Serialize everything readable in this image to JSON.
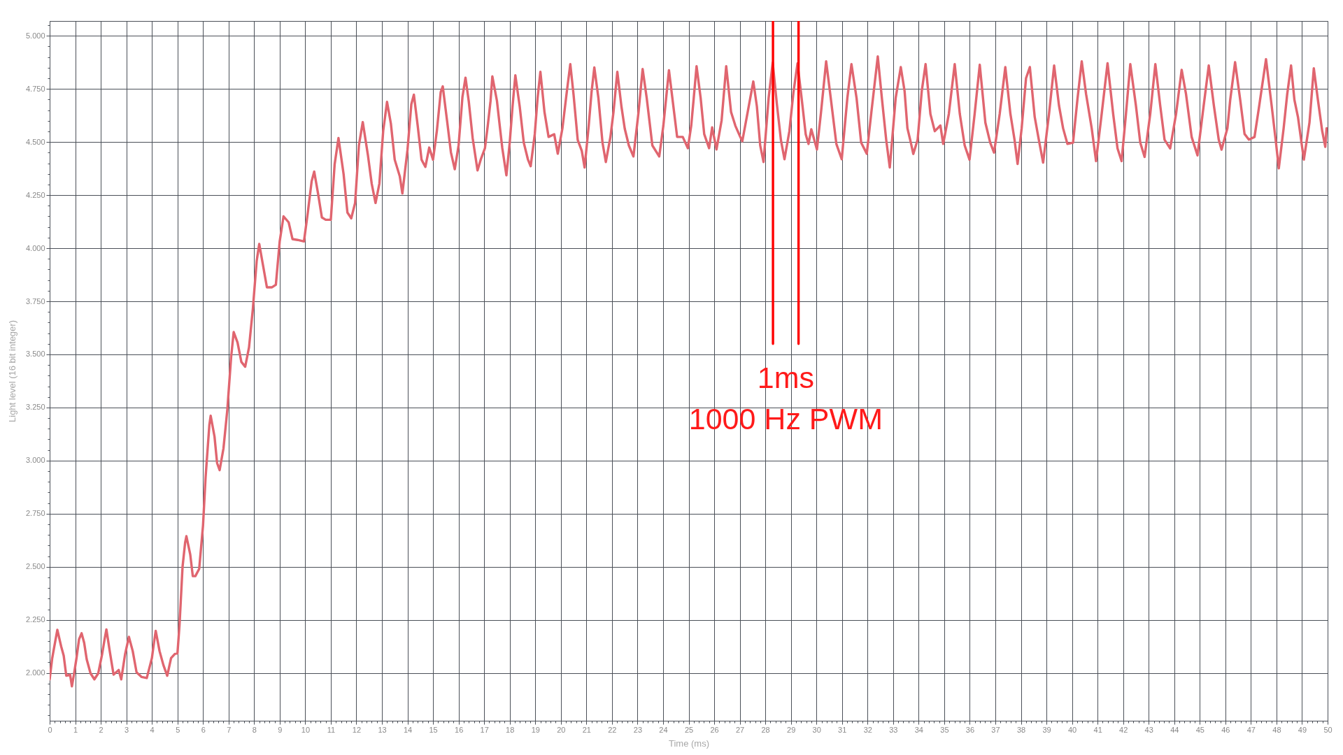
{
  "chart_data": {
    "type": "line",
    "xlabel": "Time (ms)",
    "ylabel": "Light level (16 bit integer)",
    "xlim": [
      0,
      50
    ],
    "ylim": [
      1775,
      5070
    ],
    "xticks": [
      0,
      {
        "value": 0.2,
        "label": null
      },
      {
        "value": 0.4,
        "label": null
      },
      {
        "value": 0.6,
        "label": null
      },
      {
        "value": 0.8,
        "label": null
      },
      1,
      {
        "value": 1.2,
        "label": null
      },
      {
        "value": 1.4,
        "label": null
      },
      {
        "value": 1.6,
        "label": null
      },
      {
        "value": 1.8,
        "label": null
      },
      2,
      {
        "value": 2.2,
        "label": null
      },
      {
        "value": 2.4,
        "label": null
      },
      {
        "value": 2.6,
        "label": null
      },
      {
        "value": 2.8,
        "label": null
      },
      3,
      {
        "value": 3.2,
        "label": null
      },
      {
        "value": 3.4,
        "label": null
      },
      {
        "value": 3.6,
        "label": null
      },
      {
        "value": 3.8,
        "label": null
      },
      4,
      {
        "value": 4.2,
        "label": null
      },
      {
        "value": 4.4,
        "label": null
      },
      {
        "value": 4.6,
        "label": null
      },
      {
        "value": 4.8,
        "label": null
      },
      5,
      {
        "value": 5.2,
        "label": null
      },
      {
        "value": 5.4,
        "label": null
      },
      {
        "value": 5.6,
        "label": null
      },
      {
        "value": 5.8,
        "label": null
      },
      6,
      {
        "value": 6.2,
        "label": null
      },
      {
        "value": 6.4,
        "label": null
      },
      {
        "value": 6.6,
        "label": null
      },
      {
        "value": 6.8,
        "label": null
      },
      7,
      {
        "value": 7.2,
        "label": null
      },
      {
        "value": 7.4,
        "label": null
      },
      {
        "value": 7.6,
        "label": null
      },
      {
        "value": 7.8,
        "label": null
      },
      8,
      {
        "value": 8.2,
        "label": null
      },
      {
        "value": 8.4,
        "label": null
      },
      {
        "value": 8.6,
        "label": null
      },
      {
        "value": 8.8,
        "label": null
      },
      9,
      {
        "value": 9.2,
        "label": null
      },
      {
        "value": 9.4,
        "label": null
      },
      {
        "value": 9.6,
        "label": null
      },
      {
        "value": 9.8,
        "label": null
      },
      10,
      {
        "value": 10.2,
        "label": null
      },
      {
        "value": 10.4,
        "label": null
      },
      {
        "value": 10.6,
        "label": null
      },
      {
        "value": 10.8,
        "label": null
      },
      11,
      {
        "value": 11.2,
        "label": null
      },
      {
        "value": 11.4,
        "label": null
      },
      {
        "value": 11.6,
        "label": null
      },
      {
        "value": 11.8,
        "label": null
      },
      12,
      {
        "value": 12.2,
        "label": null
      },
      {
        "value": 12.4,
        "label": null
      },
      {
        "value": 12.6,
        "label": null
      },
      {
        "value": 12.8,
        "label": null
      },
      13,
      {
        "value": 13.2,
        "label": null
      },
      {
        "value": 13.4,
        "label": null
      },
      {
        "value": 13.6,
        "label": null
      },
      {
        "value": 13.8,
        "label": null
      },
      14,
      {
        "value": 14.2,
        "label": null
      },
      {
        "value": 14.4,
        "label": null
      },
      {
        "value": 14.6,
        "label": null
      },
      {
        "value": 14.8,
        "label": null
      },
      15,
      {
        "value": 15.2,
        "label": null
      },
      {
        "value": 15.4,
        "label": null
      },
      {
        "value": 15.6,
        "label": null
      },
      {
        "value": 15.8,
        "label": null
      },
      16,
      {
        "value": 16.2,
        "label": null
      },
      {
        "value": 16.4,
        "label": null
      },
      {
        "value": 16.6,
        "label": null
      },
      {
        "value": 16.8,
        "label": null
      },
      17,
      {
        "value": 17.2,
        "label": null
      },
      {
        "value": 17.4,
        "label": null
      },
      {
        "value": 17.6,
        "label": null
      },
      {
        "value": 17.8,
        "label": null
      },
      18,
      {
        "value": 18.2,
        "label": null
      },
      {
        "value": 18.4,
        "label": null
      },
      {
        "value": 18.6,
        "label": null
      },
      {
        "value": 18.8,
        "label": null
      },
      19,
      {
        "value": 19.2,
        "label": null
      },
      {
        "value": 19.4,
        "label": null
      },
      {
        "value": 19.6,
        "label": null
      },
      {
        "value": 19.8,
        "label": null
      },
      20,
      {
        "value": 20.2,
        "label": null
      },
      {
        "value": 20.4,
        "label": null
      },
      {
        "value": 20.6,
        "label": null
      },
      {
        "value": 20.8,
        "label": null
      },
      21,
      {
        "value": 21.2,
        "label": null
      },
      {
        "value": 21.4,
        "label": null
      },
      {
        "value": 21.6,
        "label": null
      },
      {
        "value": 21.8,
        "label": null
      },
      22,
      {
        "value": 22.2,
        "label": null
      },
      {
        "value": 22.4,
        "label": null
      },
      {
        "value": 22.6,
        "label": null
      },
      {
        "value": 22.8,
        "label": null
      },
      23,
      {
        "value": 23.2,
        "label": null
      },
      {
        "value": 23.4,
        "label": null
      },
      {
        "value": 23.6,
        "label": null
      },
      {
        "value": 23.8,
        "label": null
      },
      24,
      {
        "value": 24.2,
        "label": null
      },
      {
        "value": 24.4,
        "label": null
      },
      {
        "value": 24.6,
        "label": null
      },
      {
        "value": 24.8,
        "label": null
      },
      25,
      {
        "value": 25.2,
        "label": null
      },
      {
        "value": 25.4,
        "label": null
      },
      {
        "value": 25.6,
        "label": null
      },
      {
        "value": 25.8,
        "label": null
      },
      26,
      {
        "value": 26.2,
        "label": null
      },
      {
        "value": 26.4,
        "label": null
      },
      {
        "value": 26.6,
        "label": null
      },
      {
        "value": 26.8,
        "label": null
      },
      27,
      {
        "value": 27.2,
        "label": null
      },
      {
        "value": 27.4,
        "label": null
      },
      {
        "value": 27.6,
        "label": null
      },
      {
        "value": 27.8,
        "label": null
      },
      28,
      {
        "value": 28.2,
        "label": null
      },
      {
        "value": 28.4,
        "label": null
      },
      {
        "value": 28.6,
        "label": null
      },
      {
        "value": 28.8,
        "label": null
      },
      29,
      {
        "value": 29.2,
        "label": null
      },
      {
        "value": 29.4,
        "label": null
      },
      {
        "value": 29.6,
        "label": null
      },
      {
        "value": 29.8,
        "label": null
      },
      30,
      {
        "value": 30.2,
        "label": null
      },
      {
        "value": 30.4,
        "label": null
      },
      {
        "value": 30.6,
        "label": null
      },
      {
        "value": 30.8,
        "label": null
      },
      31,
      {
        "value": 31.2,
        "label": null
      },
      {
        "value": 31.4,
        "label": null
      },
      {
        "value": 31.6,
        "label": null
      },
      {
        "value": 31.8,
        "label": null
      },
      32,
      {
        "value": 32.2,
        "label": null
      },
      {
        "value": 32.4,
        "label": null
      },
      {
        "value": 32.6,
        "label": null
      },
      {
        "value": 32.8,
        "label": null
      },
      33,
      {
        "value": 33.2,
        "label": null
      },
      {
        "value": 33.4,
        "label": null
      },
      {
        "value": 33.6,
        "label": null
      },
      {
        "value": 33.8,
        "label": null
      },
      34,
      {
        "value": 34.2,
        "label": null
      },
      {
        "value": 34.4,
        "label": null
      },
      {
        "value": 34.6,
        "label": null
      },
      {
        "value": 34.8,
        "label": null
      },
      35,
      {
        "value": 35.2,
        "label": null
      },
      {
        "value": 35.4,
        "label": null
      },
      {
        "value": 35.6,
        "label": null
      },
      {
        "value": 35.8,
        "label": null
      },
      36,
      {
        "value": 36.2,
        "label": null
      },
      {
        "value": 36.4,
        "label": null
      },
      {
        "value": 36.6,
        "label": null
      },
      {
        "value": 36.8,
        "label": null
      },
      37,
      {
        "value": 37.2,
        "label": null
      },
      {
        "value": 37.4,
        "label": null
      },
      {
        "value": 37.6,
        "label": null
      },
      {
        "value": 37.8,
        "label": null
      },
      38,
      {
        "value": 38.2,
        "label": null
      },
      {
        "value": 38.4,
        "label": null
      },
      {
        "value": 38.6,
        "label": null
      },
      {
        "value": 38.8,
        "label": null
      },
      39,
      {
        "value": 39.2,
        "label": null
      },
      {
        "value": 39.4,
        "label": null
      },
      {
        "value": 39.6,
        "label": null
      },
      {
        "value": 39.8,
        "label": null
      },
      40,
      {
        "value": 40.2,
        "label": null
      },
      {
        "value": 40.4,
        "label": null
      },
      {
        "value": 40.6,
        "label": null
      },
      {
        "value": 40.8,
        "label": null
      },
      41,
      {
        "value": 41.2,
        "label": null
      },
      {
        "value": 41.4,
        "label": null
      },
      {
        "value": 41.6,
        "label": null
      },
      {
        "value": 41.8,
        "label": null
      },
      42,
      {
        "value": 42.2,
        "label": null
      },
      {
        "value": 42.4,
        "label": null
      },
      {
        "value": 42.6,
        "label": null
      },
      {
        "value": 42.8,
        "label": null
      },
      43,
      {
        "value": 43.2,
        "label": null
      },
      {
        "value": 43.4,
        "label": null
      },
      {
        "value": 43.6,
        "label": null
      },
      {
        "value": 43.8,
        "label": null
      },
      44,
      {
        "value": 44.2,
        "label": null
      },
      {
        "value": 44.4,
        "label": null
      },
      {
        "value": 44.6,
        "label": null
      },
      {
        "value": 44.8,
        "label": null
      },
      45,
      {
        "value": 45.2,
        "label": null
      },
      {
        "value": 45.4,
        "label": null
      },
      {
        "value": 45.6,
        "label": null
      },
      {
        "value": 45.8,
        "label": null
      },
      46,
      {
        "value": 46.2,
        "label": null
      },
      {
        "value": 46.4,
        "label": null
      },
      {
        "value": 46.6,
        "label": null
      },
      {
        "value": 46.8,
        "label": null
      },
      47,
      {
        "value": 47.2,
        "label": null
      },
      {
        "value": 47.4,
        "label": null
      },
      {
        "value": 47.6,
        "label": null
      },
      {
        "value": 47.8,
        "label": null
      },
      48,
      {
        "value": 48.2,
        "label": null
      },
      {
        "value": 48.4,
        "label": null
      },
      {
        "value": 48.6,
        "label": null
      },
      {
        "value": 48.8,
        "label": null
      },
      49,
      {
        "value": 49.2,
        "label": null
      },
      {
        "value": 49.4,
        "label": null
      },
      {
        "value": 49.6,
        "label": null
      },
      {
        "value": 49.8,
        "label": null
      },
      50
    ],
    "yticks": [
      {
        "value": 1800,
        "label": null
      },
      {
        "value": 1850,
        "label": null
      },
      {
        "value": 1900,
        "label": null
      },
      {
        "value": 1950,
        "label": null
      },
      {
        "value": 2000,
        "label": "2.000"
      },
      {
        "value": 2050,
        "label": null
      },
      {
        "value": 2100,
        "label": null
      },
      {
        "value": 2150,
        "label": null
      },
      {
        "value": 2200,
        "label": null
      },
      {
        "value": 2250,
        "label": "2.250"
      },
      {
        "value": 2300,
        "label": null
      },
      {
        "value": 2350,
        "label": null
      },
      {
        "value": 2400,
        "label": null
      },
      {
        "value": 2450,
        "label": null
      },
      {
        "value": 2500,
        "label": "2.500"
      },
      {
        "value": 2550,
        "label": null
      },
      {
        "value": 2600,
        "label": null
      },
      {
        "value": 2650,
        "label": null
      },
      {
        "value": 2700,
        "label": null
      },
      {
        "value": 2750,
        "label": "2.750"
      },
      {
        "value": 2800,
        "label": null
      },
      {
        "value": 2850,
        "label": null
      },
      {
        "value": 2900,
        "label": null
      },
      {
        "value": 2950,
        "label": null
      },
      {
        "value": 3000,
        "label": "3.000"
      },
      {
        "value": 3050,
        "label": null
      },
      {
        "value": 3100,
        "label": null
      },
      {
        "value": 3150,
        "label": null
      },
      {
        "value": 3200,
        "label": null
      },
      {
        "value": 3250,
        "label": "3.250"
      },
      {
        "value": 3300,
        "label": null
      },
      {
        "value": 3350,
        "label": null
      },
      {
        "value": 3400,
        "label": null
      },
      {
        "value": 3450,
        "label": null
      },
      {
        "value": 3500,
        "label": "3.500"
      },
      {
        "value": 3550,
        "label": null
      },
      {
        "value": 3600,
        "label": null
      },
      {
        "value": 3650,
        "label": null
      },
      {
        "value": 3700,
        "label": null
      },
      {
        "value": 3750,
        "label": "3.750"
      },
      {
        "value": 3800,
        "label": null
      },
      {
        "value": 3850,
        "label": null
      },
      {
        "value": 3900,
        "label": null
      },
      {
        "value": 3950,
        "label": null
      },
      {
        "value": 4000,
        "label": "4.000"
      },
      {
        "value": 4050,
        "label": null
      },
      {
        "value": 4100,
        "label": null
      },
      {
        "value": 4150,
        "label": null
      },
      {
        "value": 4200,
        "label": null
      },
      {
        "value": 4250,
        "label": "4.250"
      },
      {
        "value": 4300,
        "label": null
      },
      {
        "value": 4350,
        "label": null
      },
      {
        "value": 4400,
        "label": null
      },
      {
        "value": 4450,
        "label": null
      },
      {
        "value": 4500,
        "label": "4.500"
      },
      {
        "value": 4550,
        "label": null
      },
      {
        "value": 4600,
        "label": null
      },
      {
        "value": 4650,
        "label": null
      },
      {
        "value": 4700,
        "label": null
      },
      {
        "value": 4750,
        "label": "4.750"
      },
      {
        "value": 4800,
        "label": null
      },
      {
        "value": 4850,
        "label": null
      },
      {
        "value": 4900,
        "label": null
      },
      {
        "value": 4950,
        "label": null
      },
      {
        "value": 5000,
        "label": "5.000"
      },
      {
        "value": 5050,
        "label": null
      }
    ],
    "grid": true,
    "series": [
      {
        "color": "#e0656f",
        "x": [
          0,
          0.1,
          0.3,
          0.45,
          0.55,
          0.65,
          0.8,
          0.87,
          0.95,
          1.05,
          1.15,
          1.25,
          1.35,
          1.45,
          1.6,
          1.75,
          1.9,
          2.05,
          2.15,
          2.22,
          2.35,
          2.5,
          2.7,
          2.8,
          2.95,
          3.1,
          3.25,
          3.4,
          3.6,
          3.8,
          4.0,
          4.1,
          4.15,
          4.3,
          4.45,
          4.6,
          4.75,
          4.9,
          5.0,
          5.08,
          5.2,
          5.3,
          5.35,
          5.5,
          5.6,
          5.7,
          5.85,
          6.0,
          6.1,
          6.25,
          6.3,
          6.45,
          6.55,
          6.65,
          6.8,
          6.95,
          7.1,
          7.2,
          7.35,
          7.5,
          7.65,
          7.8,
          7.95,
          8.1,
          8.2,
          8.35,
          8.5,
          8.7,
          8.85,
          9.0,
          9.15,
          9.35,
          9.5,
          9.7,
          9.95,
          10.1,
          10.25,
          10.35,
          10.5,
          10.65,
          10.8,
          11.0,
          11.15,
          11.3,
          11.5,
          11.65,
          11.8,
          11.95,
          12.1,
          12.25,
          12.45,
          12.6,
          12.75,
          12.9,
          13.05,
          13.2,
          13.35,
          13.5,
          13.7,
          13.8,
          14.0,
          14.15,
          14.25,
          14.4,
          14.55,
          14.7,
          14.85,
          15.0,
          15.15,
          15.3,
          15.38,
          15.55,
          15.7,
          15.85,
          16.0,
          16.15,
          16.27,
          16.4,
          16.55,
          16.74,
          16.87,
          17.03,
          17.14,
          17.25,
          17.32,
          17.5,
          17.61,
          17.71,
          17.87,
          18.0,
          18.11,
          18.22,
          18.39,
          18.55,
          18.71,
          18.82,
          18.98,
          19.09,
          19.2,
          19.36,
          19.52,
          19.74,
          19.88,
          20.06,
          20.23,
          20.37,
          20.5,
          20.66,
          20.82,
          20.93,
          21.09,
          21.2,
          21.31,
          21.47,
          21.63,
          21.76,
          21.94,
          22.06,
          22.21,
          22.37,
          22.5,
          22.66,
          22.84,
          23.04,
          23.2,
          23.36,
          23.58,
          23.85,
          24.01,
          24.23,
          24.39,
          24.55,
          24.77,
          24.97,
          25.1,
          25.2,
          25.31,
          25.47,
          25.61,
          25.8,
          25.92,
          26.09,
          26.29,
          26.47,
          26.66,
          26.83,
          27.02,
          27.1,
          27.31,
          27.53,
          27.67,
          27.8,
          27.93,
          28.13,
          28.29,
          28.45,
          28.61,
          28.75,
          28.94,
          29.1,
          29.26,
          29.42,
          29.58,
          29.69,
          29.8,
          30.02,
          30.18,
          30.38,
          30.56,
          30.78,
          30.99,
          31.21,
          31.37,
          31.57,
          31.75,
          31.97,
          32.15,
          32.4,
          32.56,
          32.73,
          32.87,
          33.1,
          33.3,
          33.45,
          33.56,
          33.68,
          33.79,
          33.96,
          34.12,
          34.27,
          34.46,
          34.63,
          34.85,
          34.96,
          35.18,
          35.41,
          35.61,
          35.8,
          35.99,
          36.19,
          36.39,
          36.61,
          36.8,
          36.95,
          37.17,
          37.39,
          37.59,
          37.75,
          37.87,
          38.03,
          38.2,
          38.35,
          38.54,
          38.7,
          38.87,
          39.1,
          39.3,
          39.49,
          39.65,
          39.82,
          40.04,
          40.21,
          40.38,
          40.55,
          40.77,
          40.94,
          41.16,
          41.39,
          41.61,
          41.78,
          41.94,
          42.11,
          42.28,
          42.5,
          42.67,
          42.84,
          43.06,
          43.26,
          43.45,
          43.62,
          43.84,
          44.07,
          44.29,
          44.46,
          44.68,
          44.91,
          45.11,
          45.35,
          45.55,
          45.74,
          45.85,
          46.08,
          46.19,
          46.38,
          46.58,
          46.75,
          46.92,
          47.14,
          47.31,
          47.59,
          47.81,
          47.98,
          48.09,
          48.28,
          48.42,
          48.57,
          48.7,
          48.84,
          49.07,
          49.29,
          49.46,
          49.62,
          49.79,
          49.91,
          49.96
        ],
        "values": [
          1970,
          2070,
          2203,
          2125,
          2081,
          1987,
          1992,
          1937,
          1992,
          2070,
          2159,
          2187,
          2142,
          2064,
          1998,
          1970,
          1998,
          2087,
          2159,
          2205,
          2103,
          1992,
          2014,
          1970,
          2087,
          2170,
          2103,
          2003,
          1981,
          1976,
          2070,
          2159,
          2198,
          2103,
          2037,
          1987,
          2070,
          2090,
          2092,
          2225,
          2501,
          2614,
          2644,
          2558,
          2456,
          2456,
          2490,
          2694,
          2921,
          3170,
          3211,
          3113,
          2989,
          2955,
          3057,
          3238,
          3488,
          3605,
          3556,
          3465,
          3442,
          3533,
          3714,
          3941,
          4020,
          3918,
          3816,
          3816,
          3828,
          4032,
          4150,
          4122,
          4043,
          4039,
          4032,
          4168,
          4315,
          4361,
          4258,
          4145,
          4134,
          4134,
          4395,
          4519,
          4349,
          4168,
          4141,
          4213,
          4485,
          4594,
          4440,
          4304,
          4213,
          4304,
          4553,
          4689,
          4587,
          4417,
          4338,
          4258,
          4463,
          4678,
          4723,
          4576,
          4417,
          4383,
          4474,
          4417,
          4553,
          4735,
          4762,
          4599,
          4451,
          4372,
          4485,
          4712,
          4803,
          4689,
          4519,
          4366,
          4419,
          4471,
          4576,
          4694,
          4809,
          4694,
          4576,
          4471,
          4343,
          4497,
          4668,
          4814,
          4668,
          4497,
          4419,
          4386,
          4537,
          4707,
          4831,
          4641,
          4524,
          4537,
          4445,
          4563,
          4733,
          4867,
          4720,
          4510,
          4458,
          4380,
          4576,
          4733,
          4851,
          4707,
          4497,
          4406,
          4524,
          4641,
          4831,
          4668,
          4563,
          4484,
          4432,
          4641,
          4844,
          4707,
          4484,
          4432,
          4576,
          4838,
          4681,
          4524,
          4524,
          4471,
          4576,
          4707,
          4857,
          4707,
          4537,
          4471,
          4569,
          4465,
          4602,
          4857,
          4641,
          4576,
          4524,
          4504,
          4641,
          4785,
          4668,
          4484,
          4406,
          4707,
          4874,
          4681,
          4510,
          4419,
          4550,
          4733,
          4870,
          4707,
          4537,
          4491,
          4560,
          4465,
          4641,
          4880,
          4707,
          4491,
          4419,
          4707,
          4867,
          4707,
          4497,
          4445,
          4641,
          4903,
          4707,
          4510,
          4380,
          4707,
          4853,
          4739,
          4565,
          4504,
          4444,
          4511,
          4739,
          4867,
          4632,
          4551,
          4578,
          4491,
          4632,
          4867,
          4632,
          4484,
          4417,
          4632,
          4864,
          4591,
          4497,
          4450,
          4632,
          4853,
          4632,
          4511,
          4397,
          4565,
          4800,
          4853,
          4618,
          4511,
          4403,
          4632,
          4860,
          4672,
          4565,
          4491,
          4497,
          4699,
          4880,
          4726,
          4565,
          4410,
          4632,
          4871,
          4632,
          4470,
          4410,
          4632,
          4867,
          4672,
          4497,
          4430,
          4632,
          4867,
          4672,
          4511,
          4470,
          4632,
          4840,
          4726,
          4524,
          4437,
          4632,
          4860,
          4672,
          4511,
          4464,
          4565,
          4699,
          4876,
          4699,
          4538,
          4511,
          4524,
          4659,
          4890,
          4672,
          4497,
          4376,
          4565,
          4726,
          4860,
          4699,
          4618,
          4417,
          4591,
          4847,
          4699,
          4551,
          4477,
          4565
        ]
      },
      {
        "color": "#ff0000",
        "x": [
          28.3,
          28.3
        ],
        "values": [
          5070,
          3550
        ]
      },
      {
        "color": "#ff0000",
        "x": [
          29.3,
          29.3
        ],
        "values": [
          5070,
          3550
        ]
      }
    ],
    "annotations": [
      "1ms",
      "1000 Hz PWM"
    ]
  }
}
